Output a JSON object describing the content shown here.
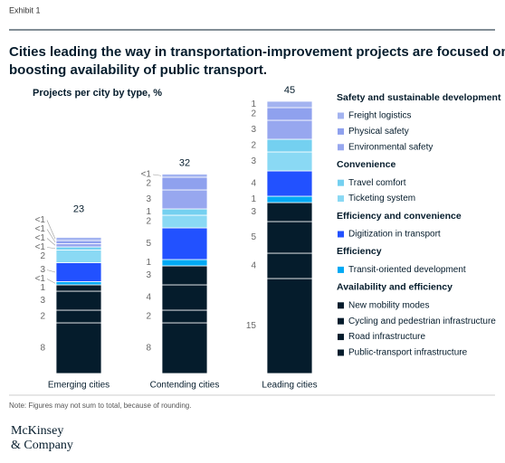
{
  "chart_data": {
    "type": "stacked_bar",
    "exhibit": "Exhibit 1",
    "title": [
      "Cities leading the way in transportation-improvement projects are focused on",
      "boosting availability of public transport."
    ],
    "y_label": "Projects per city by type, %",
    "categories": [
      "Emerging cities",
      "Contending cities",
      "Leading cities"
    ],
    "totals": [
      23,
      32,
      45
    ],
    "groups": [
      {
        "title": "Safety and sustainable development",
        "series": [
          {
            "name": "Freight logistics",
            "color": "#a3b3f0",
            "values": [
              0.5,
              0.5,
              1
            ],
            "value_labels": [
              "<1",
              "<1",
              "1"
            ]
          },
          {
            "name": "Physical safety",
            "color": "#8fa1ee",
            "values": [
              0.5,
              2,
              2
            ],
            "value_labels": [
              "<1",
              "2",
              "2"
            ]
          },
          {
            "name": "Environmental safety",
            "color": "#97a7ef",
            "values": [
              0.5,
              3,
              3
            ],
            "value_labels": [
              "<1",
              "3",
              "3"
            ]
          }
        ]
      },
      {
        "title": "Convenience",
        "series": [
          {
            "name": "Travel comfort",
            "color": "#74d0f0",
            "values": [
              0.5,
              1,
              2
            ],
            "value_labels": [
              "<1",
              "1",
              "2"
            ]
          },
          {
            "name": "Ticketing system",
            "color": "#8ad9f4",
            "values": [
              2,
              2,
              3
            ]
          }
        ]
      },
      {
        "title": "Efficiency and convenience",
        "series": [
          {
            "name": "Digitization in transport",
            "color": "#2251ff",
            "values": [
              3,
              5,
              4
            ]
          }
        ]
      },
      {
        "title": "Efficiency",
        "series": [
          {
            "name": "Transit-oriented development",
            "color": "#00a9f4",
            "values": [
              0.5,
              1,
              1
            ],
            "value_labels": [
              "<1",
              "1",
              "1"
            ]
          }
        ]
      },
      {
        "title": "Availability and efficiency",
        "series": [
          {
            "name": "New mobility modes",
            "color": "#051c2c",
            "values": [
              1,
              3,
              3
            ]
          },
          {
            "name": "Cycling and pedestrian infrastructure",
            "color": "#051c2c",
            "values": [
              3,
              4,
              5
            ]
          },
          {
            "name": "Road infrastructure",
            "color": "#051c2c",
            "values": [
              2,
              2,
              4
            ]
          },
          {
            "name": "Public-transport infrastructure",
            "color": "#051c2c",
            "values": [
              8,
              8,
              15
            ]
          }
        ]
      }
    ],
    "note": "Note: Figures may not sum to total, because of rounding.",
    "logo": [
      "McKinsey",
      "& Company"
    ]
  }
}
